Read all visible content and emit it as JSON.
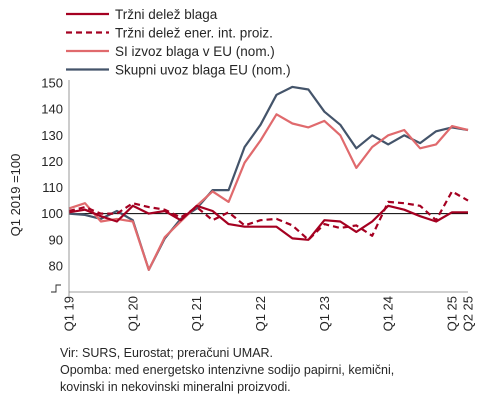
{
  "chart_data": {
    "type": "line",
    "title": "",
    "ylabel": "Q1 2019 =100",
    "xlabel": "",
    "ylim": [
      70,
      150
    ],
    "yticks": [
      80,
      90,
      100,
      110,
      120,
      130,
      140,
      150
    ],
    "reference_line": 100,
    "grid": false,
    "legend_position": "top-left",
    "x": [
      "Q1 19",
      "Q2 19",
      "Q3 19",
      "Q4 19",
      "Q1 20",
      "Q2 20",
      "Q3 20",
      "Q4 20",
      "Q1 21",
      "Q2 21",
      "Q3 21",
      "Q4 21",
      "Q1 22",
      "Q2 22",
      "Q3 22",
      "Q4 22",
      "Q1 23",
      "Q2 23",
      "Q3 23",
      "Q4 23",
      "Q1 24",
      "Q2 24",
      "Q3 24",
      "Q4 24",
      "Q1 25",
      "Q2 25"
    ],
    "x_tick_labels": [
      {
        "index": 0,
        "label": "Q1 19"
      },
      {
        "index": 4,
        "label": "Q1 20"
      },
      {
        "index": 8,
        "label": "Q1 21"
      },
      {
        "index": 12,
        "label": "Q1 22"
      },
      {
        "index": 16,
        "label": "Q1 23"
      },
      {
        "index": 20,
        "label": "Q1 24"
      },
      {
        "index": 24,
        "label": "Q1 25"
      },
      {
        "index": 25,
        "label": "Q2 25"
      }
    ],
    "series": [
      {
        "name": "Tržni delež blaga",
        "color": "#a50021",
        "style": "solid",
        "values": [
          100.5,
          101.5,
          99,
          97,
          103,
          100,
          101,
          97.5,
          103,
          101,
          96,
          95,
          95,
          95,
          90.5,
          90,
          97.5,
          97,
          93,
          97,
          103,
          101.5,
          99,
          97,
          100.5,
          100.5
        ]
      },
      {
        "name": "Tržni delež ener. int. proiz.",
        "color": "#a50021",
        "style": "dashed",
        "values": [
          101,
          102.5,
          100,
          100,
          104,
          102.5,
          101.5,
          98.5,
          102.5,
          97.5,
          100.5,
          95.5,
          97.5,
          98,
          95.5,
          90,
          96,
          94.5,
          95.5,
          91.5,
          104.5,
          104,
          103,
          97.5,
          108.5,
          105
        ]
      },
      {
        "name": "SI izvoz blaga v EU (nom.)",
        "color": "#e06a6d",
        "style": "solid",
        "values": [
          102,
          104,
          97,
          98,
          97,
          78.5,
          91,
          97,
          103,
          108.5,
          104.5,
          119.5,
          128,
          138,
          134.5,
          133,
          135.5,
          130,
          117.5,
          125.5,
          130,
          132,
          125,
          126.5,
          133.5,
          132
        ]
      },
      {
        "name": "Skupni uvoz blaga EU (nom.)",
        "color": "#44546a",
        "style": "solid",
        "values": [
          100,
          99.5,
          98,
          101,
          97.5,
          78.5,
          90.5,
          98,
          102,
          109,
          109,
          125.5,
          134,
          145.5,
          148.5,
          147.5,
          139,
          134,
          125,
          130,
          126.5,
          130,
          127,
          131.5,
          133,
          132
        ]
      }
    ]
  },
  "notes": {
    "source": "Vir: SURS, Eurostat; preračuni UMAR.",
    "note_line1": "Opomba: med energetsko intenzivne sodijo papirni, kemični,",
    "note_line2": "kovinski in nekovinski mineralni proizvodi."
  }
}
